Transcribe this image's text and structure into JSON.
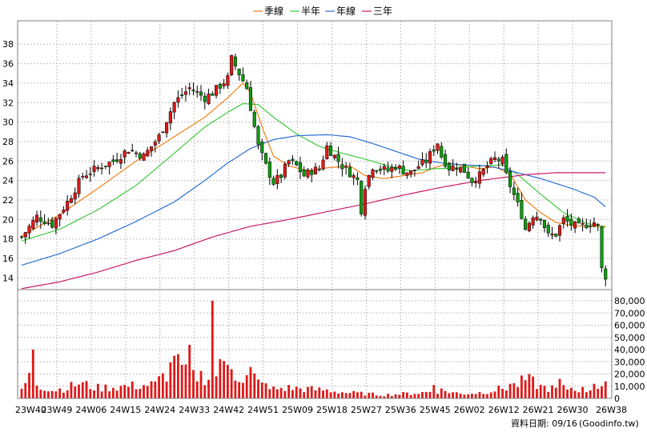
{
  "chart_data": {
    "type": "candlestick",
    "legend": [
      {
        "label": "季線",
        "color": "#f07f17"
      },
      {
        "label": "半年",
        "color": "#3ec83e"
      },
      {
        "label": "年線",
        "color": "#2e6ed6"
      },
      {
        "label": "三年",
        "color": "#c71b6a"
      }
    ],
    "price_axis": {
      "ylim": [
        12.8,
        40.4
      ],
      "ticks": [
        14,
        16,
        18,
        20,
        22,
        24,
        26,
        28,
        30,
        32,
        34,
        36,
        38
      ]
    },
    "volume_axis": {
      "ylim": [
        0,
        80000
      ],
      "ticks": [
        "0",
        "10,000",
        "20,000",
        "30,000",
        "40,000",
        "50,000",
        "60,000",
        "70,000",
        "80,000"
      ]
    },
    "x_labels": [
      "23W40",
      "23W49",
      "24W06",
      "24W15",
      "24W24",
      "24W33",
      "24W42",
      "24W51",
      "25W09",
      "25W18",
      "25W27",
      "25W36",
      "25W45",
      "26W02",
      "26W12",
      "26W21",
      "26W30",
      "26W38"
    ],
    "colors": {
      "up": "#e01818",
      "down": "#0e9c0e",
      "volume": "#e01818",
      "grid": "#c0c0c0"
    },
    "candle_anchors": [
      [
        0,
        18.2
      ],
      [
        4,
        20.3
      ],
      [
        8,
        19.5
      ],
      [
        12,
        21.8
      ],
      [
        16,
        24.5
      ],
      [
        20,
        25.3
      ],
      [
        24,
        26.0
      ],
      [
        28,
        27.2
      ],
      [
        32,
        26.5
      ],
      [
        36,
        28.5
      ],
      [
        40,
        32.0
      ],
      [
        44,
        33.5
      ],
      [
        48,
        32.5
      ],
      [
        50,
        33.0
      ],
      [
        54,
        34.5
      ],
      [
        55,
        36.5
      ],
      [
        57,
        35.0
      ],
      [
        59,
        33.5
      ],
      [
        61,
        29.5
      ],
      [
        62,
        27.5
      ],
      [
        64,
        25.5
      ],
      [
        66,
        23.8
      ],
      [
        68,
        24.5
      ],
      [
        70,
        26.0
      ],
      [
        72,
        25.5
      ],
      [
        74,
        24.5
      ],
      [
        76,
        25.0
      ],
      [
        78,
        25.2
      ],
      [
        80,
        27.5
      ],
      [
        82,
        26.5
      ],
      [
        84,
        25.5
      ],
      [
        86,
        24.8
      ],
      [
        88,
        24.0
      ],
      [
        89,
        21.0
      ],
      [
        90,
        23.5
      ],
      [
        92,
        25.5
      ],
      [
        94,
        25.2
      ],
      [
        96,
        25.0
      ],
      [
        98,
        25.5
      ],
      [
        100,
        25.0
      ],
      [
        102,
        24.8
      ],
      [
        104,
        25.5
      ],
      [
        106,
        26.0
      ],
      [
        108,
        27.3
      ],
      [
        109,
        27.9
      ],
      [
        110,
        26.5
      ],
      [
        112,
        25.3
      ],
      [
        114,
        25.5
      ],
      [
        116,
        25.0
      ],
      [
        118,
        24.0
      ],
      [
        120,
        24.5
      ],
      [
        122,
        25.5
      ],
      [
        124,
        26.2
      ],
      [
        126,
        26.0
      ],
      [
        127,
        24.5
      ],
      [
        129,
        22.5
      ],
      [
        131,
        20.5
      ],
      [
        132,
        19.0
      ],
      [
        134,
        20.5
      ],
      [
        136,
        20.3
      ],
      [
        138,
        18.3
      ],
      [
        140,
        18.5
      ],
      [
        142,
        20.0
      ],
      [
        144,
        19.5
      ],
      [
        146,
        19.2
      ],
      [
        148,
        19.5
      ],
      [
        150,
        19.7
      ],
      [
        151,
        19.3
      ],
      [
        152,
        14.9
      ],
      [
        153,
        14.2
      ]
    ],
    "volume_anchors": [
      [
        0,
        8000
      ],
      [
        2,
        18000
      ],
      [
        5,
        11000
      ],
      [
        8,
        7000
      ],
      [
        12,
        9000
      ],
      [
        15,
        13000
      ],
      [
        20,
        9000
      ],
      [
        25,
        10000
      ],
      [
        30,
        11000
      ],
      [
        35,
        12000
      ],
      [
        38,
        22000
      ],
      [
        40,
        30000
      ],
      [
        42,
        26000
      ],
      [
        44,
        16000
      ],
      [
        46,
        20000
      ],
      [
        50,
        18000
      ],
      [
        52,
        26000
      ],
      [
        54,
        35000
      ],
      [
        56,
        22000
      ],
      [
        58,
        12000
      ],
      [
        60,
        22000
      ],
      [
        62,
        14000
      ],
      [
        65,
        8000
      ],
      [
        70,
        9000
      ],
      [
        75,
        8000
      ],
      [
        80,
        7000
      ],
      [
        85,
        5000
      ],
      [
        90,
        4000
      ],
      [
        95,
        3000
      ],
      [
        100,
        4000
      ],
      [
        105,
        5000
      ],
      [
        108,
        6000
      ],
      [
        110,
        7000
      ],
      [
        115,
        4000
      ],
      [
        120,
        5000
      ],
      [
        125,
        8000
      ],
      [
        128,
        10000
      ],
      [
        130,
        12000
      ],
      [
        132,
        16000
      ],
      [
        134,
        14000
      ],
      [
        136,
        10000
      ],
      [
        140,
        8000
      ],
      [
        144,
        9000
      ],
      [
        148,
        7000
      ],
      [
        150,
        9000
      ],
      [
        153,
        11000
      ]
    ],
    "volume_spikes": [
      [
        3,
        40000
      ],
      [
        40,
        35000
      ],
      [
        44,
        44000
      ],
      [
        50,
        80000
      ],
      [
        55,
        24000
      ],
      [
        63,
        13000
      ],
      [
        87,
        6000
      ],
      [
        108,
        11000
      ],
      [
        128,
        12000
      ],
      [
        133,
        20000
      ],
      [
        141,
        16000
      ],
      [
        150,
        12000
      ]
    ],
    "ma_series": [
      {
        "label": "季線",
        "color": "#f07f17",
        "points": [
          [
            0,
            18.3
          ],
          [
            10,
            20.5
          ],
          [
            20,
            23.2
          ],
          [
            30,
            26.0
          ],
          [
            40,
            28.5
          ],
          [
            48,
            30.5
          ],
          [
            54,
            32.5
          ],
          [
            58,
            34.0
          ],
          [
            60,
            33.0
          ],
          [
            63,
            29.5
          ],
          [
            66,
            26.5
          ],
          [
            70,
            25.5
          ],
          [
            75,
            25.0
          ],
          [
            80,
            25.3
          ],
          [
            86,
            25.5
          ],
          [
            90,
            24.5
          ],
          [
            95,
            24.2
          ],
          [
            100,
            24.5
          ],
          [
            105,
            24.8
          ],
          [
            108,
            25.3
          ],
          [
            112,
            25.8
          ],
          [
            116,
            25.5
          ],
          [
            120,
            25.2
          ],
          [
            124,
            25.4
          ],
          [
            128,
            24.7
          ],
          [
            132,
            22.0
          ],
          [
            136,
            20.7
          ],
          [
            140,
            19.7
          ],
          [
            144,
            19.4
          ],
          [
            148,
            19.3
          ],
          [
            153,
            19.3
          ]
        ]
      },
      {
        "label": "半年",
        "color": "#3ec83e",
        "points": [
          [
            0,
            17.8
          ],
          [
            10,
            19.0
          ],
          [
            20,
            21.0
          ],
          [
            30,
            23.5
          ],
          [
            40,
            26.8
          ],
          [
            48,
            29.5
          ],
          [
            54,
            31.0
          ],
          [
            58,
            31.9
          ],
          [
            62,
            31.8
          ],
          [
            66,
            30.5
          ],
          [
            72,
            28.8
          ],
          [
            78,
            27.5
          ],
          [
            84,
            26.8
          ],
          [
            90,
            26.2
          ],
          [
            96,
            25.5
          ],
          [
            102,
            25.0
          ],
          [
            108,
            25.2
          ],
          [
            114,
            25.3
          ],
          [
            120,
            25.5
          ],
          [
            126,
            25.6
          ],
          [
            130,
            24.6
          ],
          [
            136,
            22.6
          ],
          [
            142,
            20.7
          ],
          [
            148,
            19.6
          ],
          [
            153,
            19.2
          ]
        ]
      },
      {
        "label": "年線",
        "color": "#2e6ed6",
        "points": [
          [
            0,
            15.3
          ],
          [
            10,
            16.5
          ],
          [
            20,
            18.0
          ],
          [
            30,
            19.8
          ],
          [
            40,
            21.8
          ],
          [
            48,
            24.0
          ],
          [
            54,
            25.8
          ],
          [
            60,
            27.3
          ],
          [
            66,
            28.2
          ],
          [
            72,
            28.6
          ],
          [
            80,
            28.7
          ],
          [
            86,
            28.5
          ],
          [
            92,
            27.8
          ],
          [
            98,
            27.0
          ],
          [
            104,
            26.2
          ],
          [
            110,
            25.8
          ],
          [
            116,
            25.6
          ],
          [
            122,
            25.5
          ],
          [
            128,
            25.0
          ],
          [
            136,
            24.2
          ],
          [
            144,
            23.2
          ],
          [
            150,
            22.3
          ],
          [
            153,
            21.3
          ]
        ]
      },
      {
        "label": "三年",
        "color": "#c71b6a",
        "points": [
          [
            0,
            12.9
          ],
          [
            10,
            13.6
          ],
          [
            20,
            14.6
          ],
          [
            30,
            15.8
          ],
          [
            40,
            16.8
          ],
          [
            50,
            18.2
          ],
          [
            60,
            19.3
          ],
          [
            70,
            20.0
          ],
          [
            80,
            20.8
          ],
          [
            90,
            21.6
          ],
          [
            100,
            22.5
          ],
          [
            110,
            23.3
          ],
          [
            120,
            24.0
          ],
          [
            126,
            24.3
          ],
          [
            132,
            24.6
          ],
          [
            140,
            24.8
          ],
          [
            153,
            24.8
          ]
        ]
      }
    ],
    "footer": "資料日期: 09/16",
    "source": "(Goodinfo.tw)"
  }
}
